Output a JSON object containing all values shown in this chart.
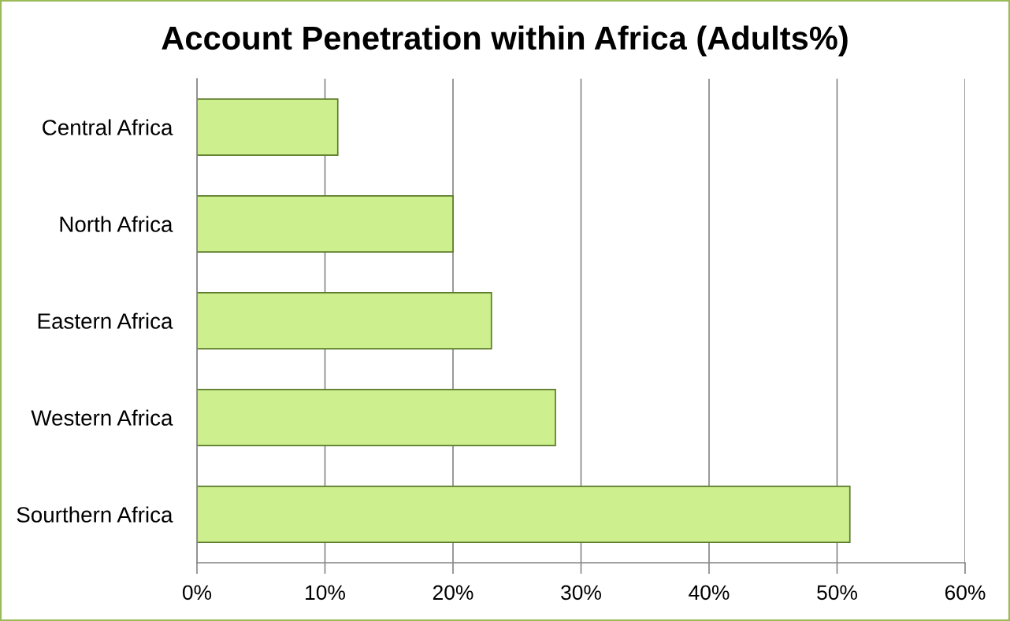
{
  "chart_data": {
    "type": "bar",
    "orientation": "horizontal",
    "title": "Account Penetration within Africa (Adults%)",
    "categories": [
      "Central Africa",
      "North Africa",
      "Eastern Africa",
      "Western Africa",
      "Sourthern Africa"
    ],
    "values": [
      11,
      20,
      23,
      28,
      51
    ],
    "color": "#cdef8e",
    "xlim": [
      0,
      60
    ],
    "xticks": [
      {
        "value": 0,
        "label": "0%"
      },
      {
        "value": 10,
        "label": "10%"
      },
      {
        "value": 20,
        "label": "20%"
      },
      {
        "value": 30,
        "label": "30%"
      },
      {
        "value": 40,
        "label": "40%"
      },
      {
        "value": 50,
        "label": "50%"
      },
      {
        "value": 60,
        "label": "60%"
      }
    ],
    "grid": "x"
  }
}
